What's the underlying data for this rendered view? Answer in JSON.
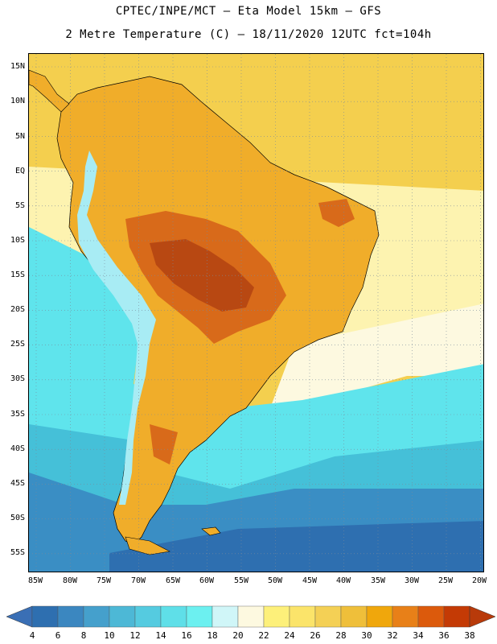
{
  "header": {
    "line1": "CPTEC/INPE/MCT –  Eta Model 15km – GFS",
    "line2": "2 Metre Temperature (C) – 18/11/2020 12UTC fct=104h"
  },
  "map": {
    "lat_labels": [
      "15N",
      "10N",
      "5N",
      "EQ",
      "5S",
      "10S",
      "15S",
      "20S",
      "25S",
      "30S",
      "35S",
      "40S",
      "45S",
      "50S",
      "55S"
    ],
    "lon_labels": [
      "85W",
      "80W",
      "75W",
      "70W",
      "65W",
      "60W",
      "55W",
      "50W",
      "45W",
      "40W",
      "35W",
      "30W",
      "25W",
      "20W"
    ]
  },
  "colorbar": {
    "labels": [
      "4",
      "6",
      "8",
      "10",
      "12",
      "14",
      "16",
      "18",
      "20",
      "22",
      "24",
      "26",
      "28",
      "30",
      "32",
      "34",
      "36",
      "38"
    ],
    "colors": [
      "#2e6fb0",
      "#3b87c0",
      "#45a0cc",
      "#4db8d6",
      "#55cbe0",
      "#5fdfe8",
      "#6cf0f0",
      "#d0f6f8",
      "#fdf9e0",
      "#fdf07a",
      "#fbe46a",
      "#f4d055",
      "#efbf3a",
      "#f0a70c",
      "#e88018",
      "#dc5a0c",
      "#c43a05"
    ],
    "left_cap_color": "#3a6fb5",
    "right_cap_color": "#b83a0a"
  },
  "palette": {
    "warm_ocean": "#f4cf4e",
    "pale_ocean": "#fdf3b0",
    "cream_band": "#fdf9e0",
    "cyan_ocean": "#5fe4ec",
    "teal_ocean": "#45c0d8",
    "blue_ocean": "#3a8ec4",
    "deep_ocean": "#2e6fb0",
    "land_warm": "#f0ad2a",
    "land_hot": "#d86a1a",
    "land_hottest": "#b84812",
    "andes_cold": "#a8ecf4"
  }
}
